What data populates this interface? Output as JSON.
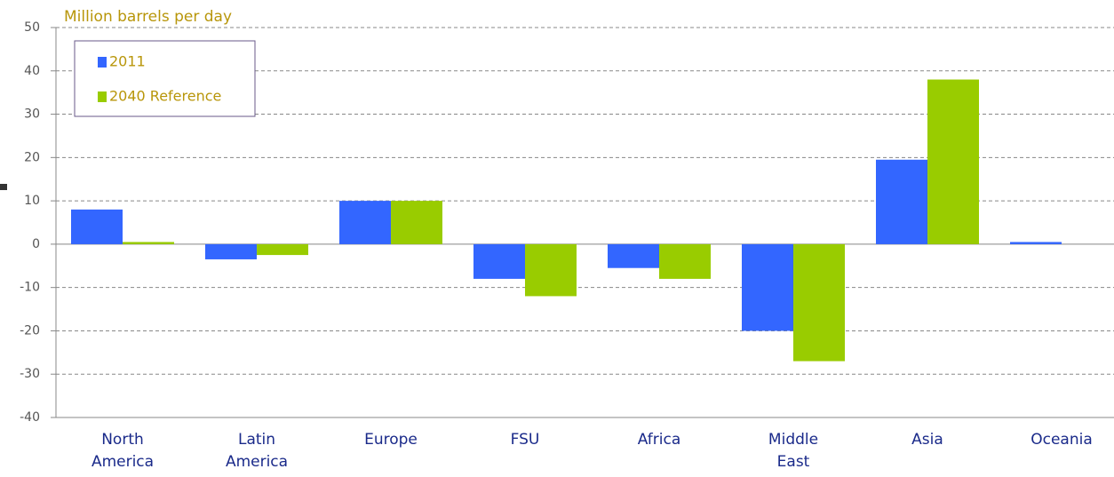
{
  "chart_data": {
    "type": "bar",
    "y_label": "Million barrels per day",
    "categories": [
      "North\nAmerica",
      "Latin\nAmerica",
      "Europe",
      "FSU",
      "Africa",
      "Middle\nEast",
      "Asia",
      "Oceania"
    ],
    "series": [
      {
        "name": "2011",
        "color": "#3366ff",
        "values": [
          8,
          -3.5,
          10,
          -8,
          -5.5,
          -20,
          19.5,
          0.5
        ]
      },
      {
        "name": "2040 Reference",
        "color": "#99cc00",
        "values": [
          0.5,
          -2.5,
          10,
          -12,
          -8,
          -27,
          38,
          0
        ]
      }
    ],
    "ylim": [
      -40,
      50
    ],
    "yticks": [
      -40,
      -30,
      -20,
      -10,
      0,
      10,
      20,
      30,
      40,
      50
    ],
    "grid": true
  }
}
